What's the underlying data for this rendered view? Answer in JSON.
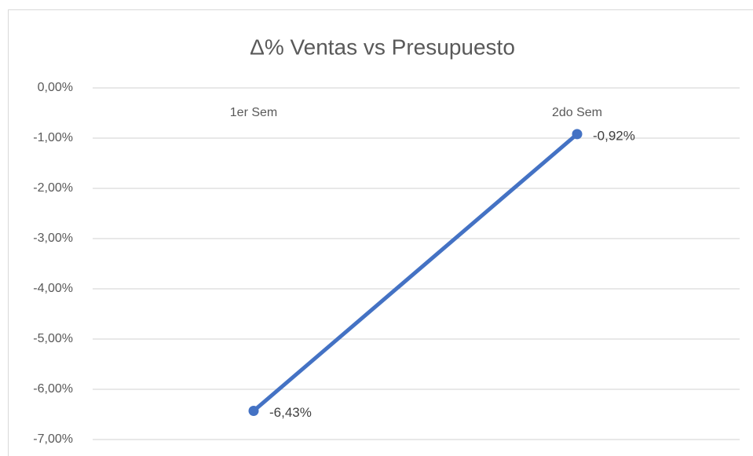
{
  "chart_data": {
    "type": "line",
    "title": "Δ% Ventas vs Presupuesto",
    "categories": [
      "1er Sem",
      "2do Sem"
    ],
    "series": [
      {
        "color": "#4472c4",
        "values": [
          -6.43,
          -0.92
        ],
        "value_labels": [
          "-6,43%",
          "-0,92%"
        ]
      }
    ],
    "ylim": [
      -7,
      0
    ],
    "yticks": [
      {
        "value": 0,
        "label": "0,00%"
      },
      {
        "value": -1,
        "label": "-1,00%"
      },
      {
        "value": -2,
        "label": "-2,00%"
      },
      {
        "value": -3,
        "label": "-3,00%"
      },
      {
        "value": -4,
        "label": "-4,00%"
      },
      {
        "value": -5,
        "label": "-5,00%"
      },
      {
        "value": -6,
        "label": "-6,00%"
      },
      {
        "value": -7,
        "label": "-7,00%"
      }
    ],
    "grid": true
  }
}
